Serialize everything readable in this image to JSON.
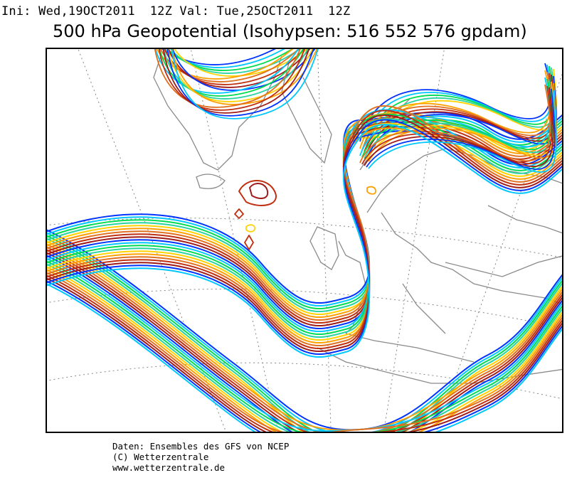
{
  "header": {
    "init_line": "Ini: Wed,19OCT2011  12Z Val: Tue,25OCT2011  12Z",
    "title": "500 hPa Geopotential (Isohypsen: 516 552 576 gpdam)"
  },
  "map": {
    "region": "North Atlantic / Europe",
    "contour_levels_gpdam": [
      516,
      552,
      576
    ],
    "member_colors": [
      "#0033ff",
      "#00c8ff",
      "#00dc50",
      "#28d4a0",
      "#ffd200",
      "#ffa000",
      "#e07020",
      "#c03010",
      "#a01a1a"
    ]
  },
  "footer": {
    "line1": "Daten: Ensembles des GFS von NCEP",
    "line2": "(C) Wetterzentrale",
    "line3": "www.wetterzentrale.de"
  }
}
